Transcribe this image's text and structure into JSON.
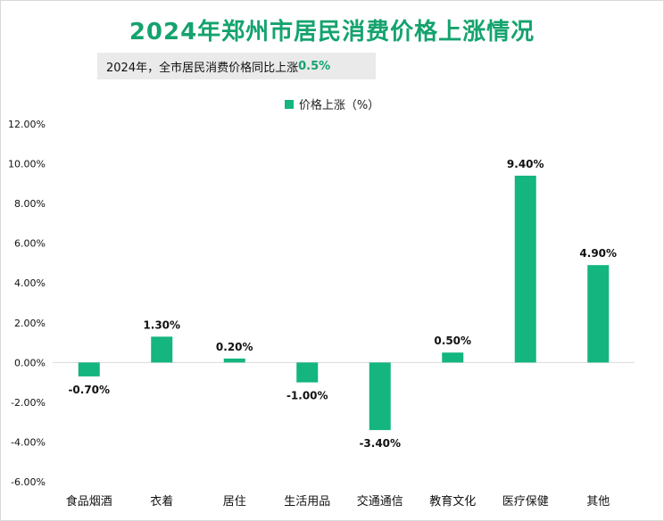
{
  "title": "2024年郑州市居民消费价格上涨情况",
  "subtitle": {
    "text": "2024年，全市居民消费价格同比上涨",
    "highlight": "0.5%"
  },
  "colors": {
    "bar": "#14b57f",
    "title": "#14a36e",
    "grid": "#d9d9d9",
    "text": "#111111"
  },
  "chart_data": {
    "type": "bar",
    "categories": [
      "食品烟酒",
      "衣着",
      "居住",
      "生活用品",
      "交通通信",
      "教育文化",
      "医疗保健",
      "其他"
    ],
    "series": [
      {
        "name": "价格上涨（%）",
        "values": [
          -0.7,
          1.3,
          0.2,
          -1.0,
          -3.4,
          0.5,
          9.4,
          4.9
        ],
        "labels": [
          "-0.70%",
          "1.30%",
          "0.20%",
          "-1.00%",
          "-3.40%",
          "0.50%",
          "9.40%",
          "4.90%"
        ]
      }
    ],
    "ylim": [
      -6,
      12
    ],
    "yticks": [
      -6,
      -4,
      -2,
      0,
      2,
      4,
      6,
      8,
      10,
      12
    ],
    "ytick_labels": [
      "-6.00%",
      "-4.00%",
      "-2.00%",
      "0.00%",
      "2.00%",
      "4.00%",
      "6.00%",
      "8.00%",
      "10.00%",
      "12.00%"
    ],
    "legend": "top-center",
    "grid": false
  }
}
